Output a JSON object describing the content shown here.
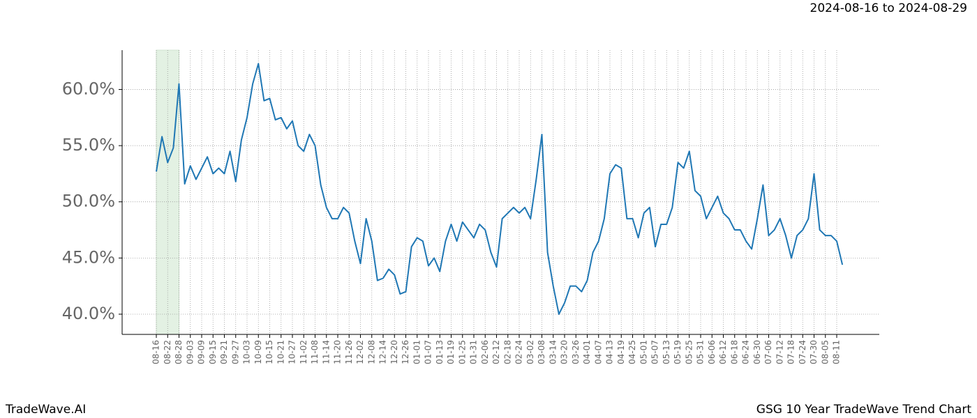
{
  "chart_data": {
    "type": "line",
    "date_range": "2024-08-16 to 2024-08-29",
    "brand": "TradeWave.AI",
    "title": "GSG 10 Year TradeWave Trend Chart",
    "categories": [
      "08-16",
      null,
      "08-22",
      null,
      "08-28",
      null,
      "09-03",
      null,
      "09-09",
      null,
      "09-15",
      null,
      "09-21",
      null,
      "09-27",
      null,
      "10-03",
      null,
      "10-09",
      null,
      "10-15",
      null,
      "10-21",
      null,
      "10-27",
      null,
      "11-02",
      null,
      "11-08",
      null,
      "11-14",
      null,
      "11-20",
      null,
      "11-26",
      null,
      "12-02",
      null,
      "12-08",
      null,
      "12-14",
      null,
      "12-20",
      null,
      "12-26",
      null,
      "01-01",
      null,
      "01-07",
      null,
      "01-13",
      null,
      "01-19",
      null,
      "01-25",
      null,
      "01-31",
      null,
      "02-06",
      null,
      "02-12",
      null,
      "02-18",
      null,
      "02-24",
      null,
      "03-02",
      null,
      "03-08",
      null,
      "03-14",
      null,
      "03-20",
      null,
      "03-26",
      null,
      "04-01",
      null,
      "04-07",
      null,
      "04-13",
      null,
      "04-19",
      null,
      "04-25",
      null,
      "05-01",
      null,
      "05-07",
      null,
      "05-13",
      null,
      "05-19",
      null,
      "05-25",
      null,
      "05-31",
      null,
      "06-06",
      null,
      "06-12",
      null,
      "06-18",
      null,
      "06-24",
      null,
      "06-30",
      null,
      "07-06",
      null,
      "07-12",
      null,
      "07-18",
      null,
      "07-24",
      null,
      "07-30",
      null,
      "08-05",
      null,
      "08-11",
      null
    ],
    "series": [
      {
        "color": "#1f77b4",
        "values": [
          52.7,
          55.8,
          53.5,
          54.8,
          60.5,
          51.6,
          53.2,
          52.0,
          53.0,
          54.0,
          52.5,
          53.0,
          52.5,
          54.5,
          51.8,
          55.5,
          57.5,
          60.5,
          62.3,
          59.0,
          59.2,
          57.3,
          57.5,
          56.5,
          57.2,
          55.0,
          54.5,
          56.0,
          55.0,
          51.5,
          49.5,
          48.5,
          48.5,
          49.5,
          49.0,
          46.5,
          44.5,
          48.5,
          46.5,
          43.0,
          43.2,
          44.0,
          43.5,
          41.8,
          42.0,
          46.0,
          46.8,
          46.5,
          44.3,
          45.0,
          43.8,
          46.5,
          48.0,
          46.5,
          48.2,
          47.5,
          46.8,
          48.0,
          47.5,
          45.5,
          44.2,
          48.5,
          49.0,
          49.5,
          49.0,
          49.5,
          48.5,
          52.0,
          56.0,
          45.5,
          42.5,
          40.0,
          41.0,
          42.5,
          42.5,
          42.0,
          43.0,
          45.5,
          46.5,
          48.5,
          52.5,
          53.3,
          53.0,
          48.5,
          48.5,
          46.8,
          49.0,
          49.5,
          46.0,
          48.0,
          48.0,
          49.5,
          53.5,
          53.0,
          54.5,
          51.0,
          50.5,
          48.5,
          49.5,
          50.5,
          49.0,
          48.5,
          47.5,
          47.5,
          46.5,
          45.8,
          48.5,
          51.5,
          47.0,
          47.5,
          48.5,
          47.0,
          45.0,
          47.0,
          47.5,
          48.5,
          52.5,
          47.5,
          47.0,
          47.0,
          46.5,
          44.4
        ]
      }
    ],
    "highlight": [
      0,
      4
    ],
    "ylim": [
      38.2,
      63.5
    ],
    "yticks": [
      {
        "value": 40,
        "label": "40.0%"
      },
      {
        "value": 45,
        "label": "45.0%"
      },
      {
        "value": 50,
        "label": "50.0%"
      },
      {
        "value": 55,
        "label": "55.0%"
      },
      {
        "value": 60,
        "label": "60.0%"
      }
    ],
    "grid": true
  }
}
